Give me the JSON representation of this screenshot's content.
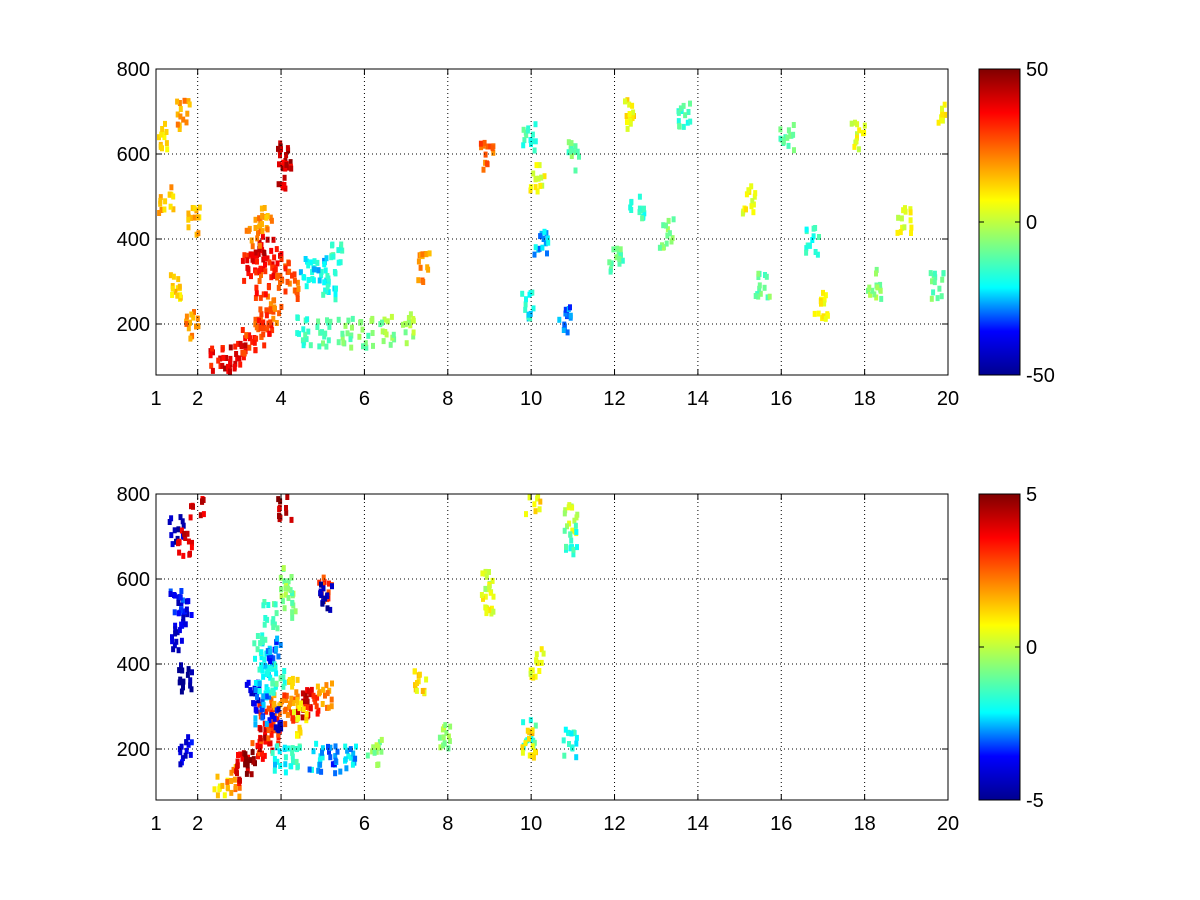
{
  "figure": {
    "background": "#ffffff",
    "colormap": "jet",
    "colormap_stops": [
      "#00008f",
      "#0000ff",
      "#00ffff",
      "#80ff80",
      "#ffff00",
      "#ff8000",
      "#ff0000",
      "#800000"
    ]
  },
  "chart_data": [
    {
      "type": "heatmap",
      "title": "",
      "xlabel": "",
      "ylabel": "",
      "xlim": [
        1,
        20
      ],
      "ylim": [
        80,
        800
      ],
      "xticks": [
        "1",
        "2",
        "4",
        "6",
        "8",
        "10",
        "12",
        "14",
        "16",
        "18",
        "20"
      ],
      "xtick_values": [
        1,
        2,
        4,
        6,
        8,
        10,
        12,
        14,
        16,
        18,
        20
      ],
      "yticks": [
        "200",
        "400",
        "600",
        "800"
      ],
      "ytick_values": [
        200,
        400,
        600,
        800
      ],
      "grid": true,
      "colorbar": {
        "min": -50,
        "max": 50,
        "ticks": [
          "50",
          "0",
          "-50"
        ],
        "tick_values": [
          50,
          0,
          -50
        ]
      },
      "features": [
        {
          "name": "",
          "points": [
            [
              2.4,
              120,
              35
            ],
            [
              2.7,
              125,
              40
            ],
            [
              3.0,
              140,
              38
            ],
            [
              3.2,
              165,
              30
            ],
            [
              3.4,
              190,
              28
            ],
            [
              3.6,
              215,
              30
            ],
            [
              3.8,
              240,
              25
            ],
            [
              3.2,
              340,
              35
            ],
            [
              3.4,
              360,
              38
            ],
            [
              3.6,
              380,
              40
            ],
            [
              3.8,
              350,
              35
            ],
            [
              3.5,
              300,
              30
            ],
            [
              4.0,
              320,
              28
            ],
            [
              4.2,
              300,
              25
            ],
            [
              3.3,
              420,
              20
            ],
            [
              3.6,
              460,
              18
            ],
            [
              4.05,
              600,
              45
            ],
            [
              4.05,
              560,
              40
            ],
            [
              4.6,
              330,
              -20
            ],
            [
              4.9,
              340,
              -22
            ],
            [
              5.1,
              300,
              -18
            ],
            [
              5.3,
              360,
              -15
            ],
            [
              4.5,
              190,
              -15
            ],
            [
              5.0,
              185,
              -12
            ],
            [
              5.5,
              185,
              -10
            ],
            [
              6.0,
              185,
              -8
            ],
            [
              6.5,
              190,
              -5
            ],
            [
              7.0,
              195,
              -3
            ],
            [
              8.9,
              600,
              25
            ],
            [
              7.4,
              340,
              20
            ]
          ]
        },
        {
          "name": "",
          "points": [
            [
              1.1,
              650,
              10
            ],
            [
              1.2,
              500,
              15
            ],
            [
              1.4,
              300,
              12
            ],
            [
              1.6,
              700,
              18
            ],
            [
              1.9,
              450,
              14
            ],
            [
              1.8,
              200,
              20
            ]
          ]
        },
        {
          "name": "",
          "points": [
            [
              9.9,
              250,
              -20
            ],
            [
              9.9,
              650,
              -15
            ],
            [
              10.2,
              400,
              -25
            ],
            [
              10.1,
              550,
              5
            ],
            [
              10.8,
              220,
              -30
            ],
            [
              11.0,
              600,
              -10
            ],
            [
              12.0,
              350,
              -12
            ],
            [
              12.3,
              700,
              8
            ],
            [
              12.5,
              480,
              -15
            ],
            [
              13.2,
              420,
              -8
            ],
            [
              13.6,
              700,
              -14
            ],
            [
              15.2,
              500,
              5
            ],
            [
              15.5,
              300,
              -10
            ],
            [
              16.1,
              650,
              -12
            ],
            [
              16.7,
              400,
              -16
            ],
            [
              16.9,
              250,
              6
            ],
            [
              17.8,
              650,
              4
            ],
            [
              18.2,
              300,
              -6
            ],
            [
              18.9,
              450,
              5
            ],
            [
              19.7,
              300,
              -10
            ],
            [
              19.9,
              700,
              6
            ]
          ]
        }
      ]
    },
    {
      "type": "heatmap",
      "title": "",
      "xlabel": "",
      "ylabel": "",
      "xlim": [
        1,
        20
      ],
      "ylim": [
        80,
        800
      ],
      "xticks": [
        "1",
        "2",
        "4",
        "6",
        "8",
        "10",
        "12",
        "14",
        "16",
        "18",
        "20"
      ],
      "xtick_values": [
        1,
        2,
        4,
        6,
        8,
        10,
        12,
        14,
        16,
        18,
        20
      ],
      "yticks": [
        "200",
        "400",
        "600",
        "800"
      ],
      "ytick_values": [
        200,
        400,
        600,
        800
      ],
      "grid": true,
      "colorbar": {
        "min": -5,
        "max": 5,
        "ticks": [
          "5",
          "0",
          "-5"
        ],
        "tick_values": [
          5,
          0,
          -5
        ]
      },
      "features": [
        {
          "name": "",
          "points": [
            [
              2.5,
              110,
              1
            ],
            [
              2.8,
              130,
              2
            ],
            [
              3.0,
              160,
              4
            ],
            [
              3.2,
              180,
              5
            ],
            [
              3.4,
              210,
              3
            ],
            [
              3.6,
              230,
              4
            ],
            [
              3.8,
              250,
              3
            ],
            [
              3.6,
              290,
              3
            ],
            [
              3.9,
              300,
              2
            ],
            [
              4.2,
              305,
              2.5
            ],
            [
              4.5,
              310,
              4
            ],
            [
              4.7,
              320,
              3.5
            ],
            [
              4.3,
              340,
              1.5
            ],
            [
              5.0,
              335,
              2
            ],
            [
              4.4,
              270,
              1
            ]
          ]
        },
        {
          "name": "",
          "points": [
            [
              3.3,
              330,
              -4
            ],
            [
              3.5,
              350,
              -2.5
            ],
            [
              3.7,
              370,
              -2
            ],
            [
              3.9,
              380,
              -1.5
            ],
            [
              3.6,
              410,
              -2
            ],
            [
              3.4,
              450,
              -1.8
            ],
            [
              3.8,
              440,
              -3
            ],
            [
              3.7,
              520,
              -1.5
            ],
            [
              3.8,
              270,
              -4
            ],
            [
              3.5,
              300,
              -3
            ]
          ]
        },
        {
          "name": "",
          "points": [
            [
              3.9,
              185,
              -2
            ],
            [
              4.3,
              185,
              -1.5
            ],
            [
              4.8,
              185,
              -2.5
            ],
            [
              5.2,
              185,
              -3
            ],
            [
              5.6,
              185,
              -2.5
            ],
            [
              6.2,
              195,
              -0.5
            ],
            [
              4.1,
              600,
              -0.5
            ],
            [
              4.15,
              550,
              -1
            ],
            [
              4.05,
              780,
              4.5
            ],
            [
              5.0,
              590,
              3
            ],
            [
              5.0,
              560,
              -4.5
            ],
            [
              7.3,
              370,
              1
            ],
            [
              7.9,
              240,
              -0.5
            ],
            [
              8.9,
              600,
              0
            ],
            [
              8.9,
              560,
              0.5
            ],
            [
              9.9,
              240,
              -1.5
            ],
            [
              9.9,
              220,
              1
            ],
            [
              10.1,
              410,
              0.5
            ],
            [
              10.0,
              780,
              1
            ],
            [
              10.9,
              750,
              0
            ],
            [
              10.9,
              700,
              -1.5
            ],
            [
              10.9,
              220,
              -1.8
            ]
          ]
        },
        {
          "name": "",
          "points": [
            [
              1.45,
              720,
              -4.5
            ],
            [
              1.45,
              560,
              -3.5
            ],
            [
              1.45,
              470,
              -4
            ],
            [
              1.65,
              690,
              4
            ],
            [
              1.65,
              530,
              -4
            ],
            [
              1.65,
              370,
              -5
            ],
            [
              1.65,
              200,
              -4
            ],
            [
              1.95,
              780,
              4
            ]
          ]
        }
      ]
    }
  ]
}
